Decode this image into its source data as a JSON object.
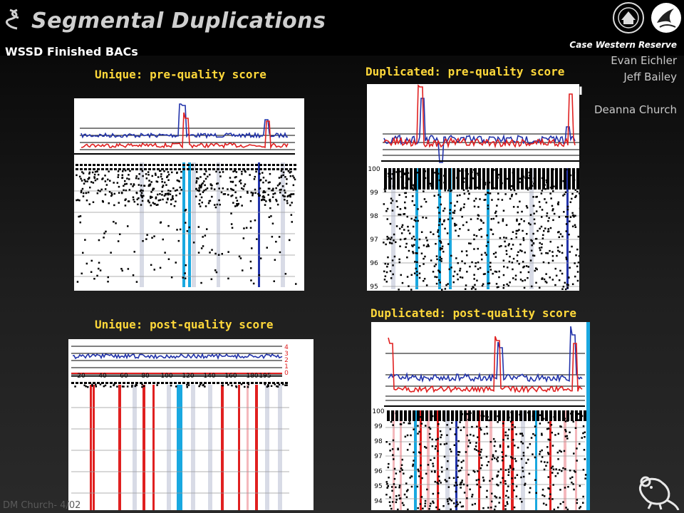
{
  "slide": {
    "title": "Segmental Duplications",
    "subtitle": "WSSD Finished BACs",
    "institution": "Case Western Reserve",
    "credits": [
      "Evan Eichler",
      "Jeff Bailey",
      "Deanna Church"
    ],
    "cursor_mark": "I",
    "footer": "DM Church- 4/02"
  },
  "panels": {
    "unique_pre": {
      "title": "Unique: pre-quality score"
    },
    "dup_pre": {
      "title": "Duplicated: pre-quality score",
      "y_ticks": [
        "100",
        "99",
        "98",
        "97",
        "96",
        "95"
      ]
    },
    "unique_post": {
      "title": "Unique: post-quality score",
      "x_ticks": [
        "20",
        "40",
        "60",
        "80",
        "100",
        "120",
        "140",
        "160",
        "180",
        "195"
      ],
      "y_ticks": [
        "4",
        "3",
        "2",
        "1",
        "0"
      ]
    },
    "dup_post": {
      "title": "Duplicated: post-quality score",
      "y_ticks": [
        "100",
        "99",
        "98",
        "97",
        "96",
        "95",
        "94"
      ]
    }
  },
  "colors": {
    "title_gold": "#ffd83a",
    "series_blue": "#2233aa",
    "series_red": "#e02020",
    "highlight_cyan": "#19a8e0",
    "band_grey": "#d8dbe6",
    "band_pink": "#f4b8bc"
  },
  "icons": [
    "nih-seal-icon",
    "hhs-eagle-icon",
    "lab-mouse-icon",
    "helix-icon"
  ]
}
